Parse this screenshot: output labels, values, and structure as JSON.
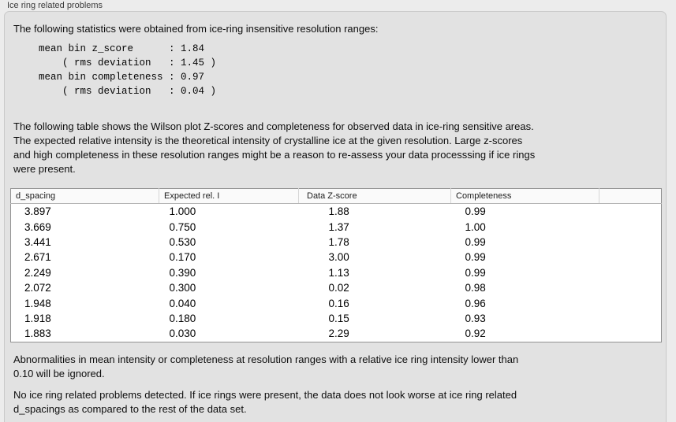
{
  "panel": {
    "title": "Ice ring related problems"
  },
  "intro": {
    "text": "The following statistics were obtained from ice-ring insensitive resolution ranges:"
  },
  "stats": {
    "lines": [
      "mean bin z_score      : 1.84",
      "    ( rms deviation   : 1.45 )",
      "mean bin completeness : 0.97",
      "    ( rms deviation   : 0.04 )"
    ],
    "mean_bin_z_score": 1.84,
    "z_score_rms_deviation": 1.45,
    "mean_bin_completeness": 0.97,
    "completeness_rms_deviation": 0.04
  },
  "table_description": {
    "lines": [
      "The following table shows the Wilson plot Z-scores and completeness for observed data in ice-ring sensitive areas.",
      "The expected relative intensity is the theoretical intensity of crystalline ice at the given resolution. Large z-scores",
      "and high completeness in these resolution ranges might be a reason to re-assess your data processsing if ice rings",
      "were present."
    ]
  },
  "table": {
    "headers": [
      "d_spacing",
      "Expected rel. I",
      "Data Z-score",
      "Completeness"
    ],
    "rows": [
      [
        "3.897",
        "1.000",
        "1.88",
        "0.99"
      ],
      [
        "3.669",
        "0.750",
        "1.37",
        "1.00"
      ],
      [
        "3.441",
        "0.530",
        "1.78",
        "0.99"
      ],
      [
        "2.671",
        "0.170",
        "3.00",
        "0.99"
      ],
      [
        "2.249",
        "0.390",
        "1.13",
        "0.99"
      ],
      [
        "2.072",
        "0.300",
        "0.02",
        "0.98"
      ],
      [
        "1.948",
        "0.040",
        "0.16",
        "0.96"
      ],
      [
        "1.918",
        "0.180",
        "0.15",
        "0.93"
      ],
      [
        "1.883",
        "0.030",
        "2.29",
        "0.92"
      ]
    ]
  },
  "note": {
    "lines": [
      "Abnormalities in mean intensity or completeness at resolution ranges with a relative ice ring intensity lower than",
      "0.10 will be ignored."
    ]
  },
  "conclusion": {
    "lines": [
      "No ice ring related problems detected. If ice rings were present, the data does not look worse at ice ring related",
      "d_spacings as compared to the rest of the data set."
    ]
  },
  "colors": {
    "page_bg": "#ececec",
    "panel_bg": "#e2e2e2",
    "panel_border": "#c9c9c9",
    "table_bg": "#ffffff",
    "table_border": "#929292",
    "header_bg": "#fafafa",
    "text": "#111111"
  }
}
